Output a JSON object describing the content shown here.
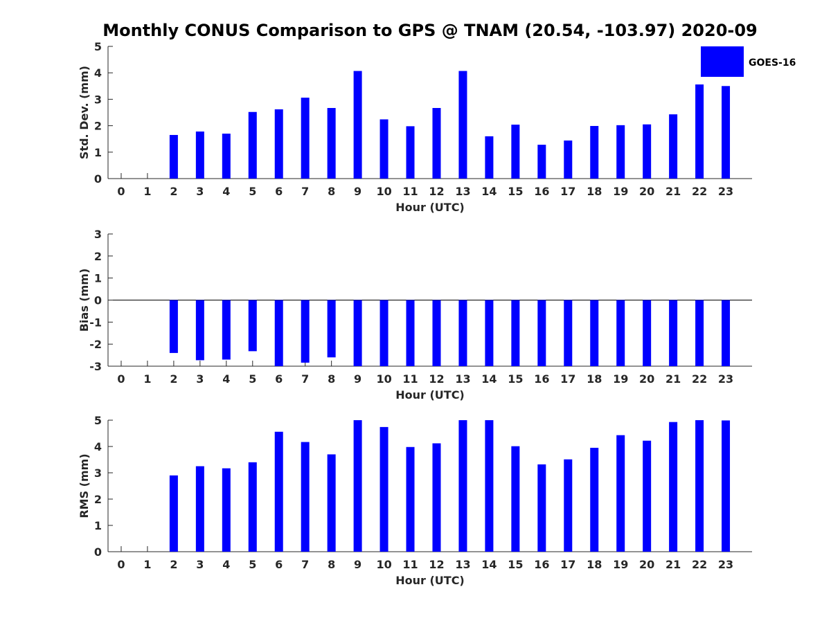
{
  "title": "Monthly CONUS Comparison to GPS @ TNAM (20.54, -103.97) 2020-09",
  "colors": {
    "bar": "#0000ff",
    "axis": "#262626",
    "legend_border": "#ffffff"
  },
  "legend": {
    "label": "GOES-16",
    "placement": "top-right"
  },
  "chart_data": [
    {
      "type": "bar",
      "name": "std_dev",
      "categories": [
        "0",
        "1",
        "2",
        "3",
        "4",
        "5",
        "6",
        "7",
        "8",
        "9",
        "10",
        "11",
        "12",
        "13",
        "14",
        "15",
        "16",
        "17",
        "18",
        "19",
        "20",
        "21",
        "22",
        "23"
      ],
      "series": [
        {
          "name": "GOES-16",
          "values": [
            null,
            null,
            1.65,
            1.78,
            1.7,
            2.52,
            2.62,
            3.06,
            2.67,
            4.07,
            2.24,
            1.98,
            2.67,
            4.07,
            1.6,
            2.04,
            1.28,
            1.44,
            1.99,
            2.02,
            2.05,
            2.43,
            3.56,
            3.5
          ]
        }
      ],
      "xlabel": "Hour (UTC)",
      "ylabel": "Std. Dev. (mm)",
      "ylim": [
        0,
        5
      ],
      "yticks": [
        "0",
        "1",
        "2",
        "3",
        "4",
        "5"
      ],
      "grid": false
    },
    {
      "type": "bar",
      "name": "bias",
      "categories": [
        "0",
        "1",
        "2",
        "3",
        "4",
        "5",
        "6",
        "7",
        "8",
        "9",
        "10",
        "11",
        "12",
        "13",
        "14",
        "15",
        "16",
        "17",
        "18",
        "19",
        "20",
        "21",
        "22",
        "23"
      ],
      "series": [
        {
          "name": "GOES-16",
          "values": [
            null,
            null,
            -2.4,
            -2.73,
            -2.7,
            -2.32,
            -3,
            -2.84,
            -2.6,
            -3,
            -3,
            -3,
            -3,
            -3,
            -3,
            -3,
            -3,
            -3,
            -3,
            -3,
            -3,
            -3,
            -3,
            -3
          ]
        }
      ],
      "xlabel": "Hour (UTC)",
      "ylabel": "Bias (mm)",
      "ylim": [
        -3,
        3
      ],
      "yticks": [
        "-3",
        "-2",
        "-1",
        "0",
        "1",
        "2",
        "3"
      ],
      "grid": false,
      "zero_line": true
    },
    {
      "type": "bar",
      "name": "rms",
      "categories": [
        "0",
        "1",
        "2",
        "3",
        "4",
        "5",
        "6",
        "7",
        "8",
        "9",
        "10",
        "11",
        "12",
        "13",
        "14",
        "15",
        "16",
        "17",
        "18",
        "19",
        "20",
        "21",
        "22",
        "23"
      ],
      "series": [
        {
          "name": "GOES-16",
          "values": [
            null,
            null,
            2.9,
            3.25,
            3.17,
            3.4,
            4.56,
            4.17,
            3.7,
            5,
            4.74,
            3.98,
            4.12,
            5,
            5,
            4.01,
            3.32,
            3.51,
            3.95,
            4.43,
            4.22,
            4.93,
            5,
            4.99
          ]
        }
      ],
      "xlabel": "Hour (UTC)",
      "ylabel": "RMS (mm)",
      "ylim": [
        0,
        5
      ],
      "yticks": [
        "0",
        "1",
        "2",
        "3",
        "4",
        "5"
      ],
      "grid": false
    }
  ]
}
